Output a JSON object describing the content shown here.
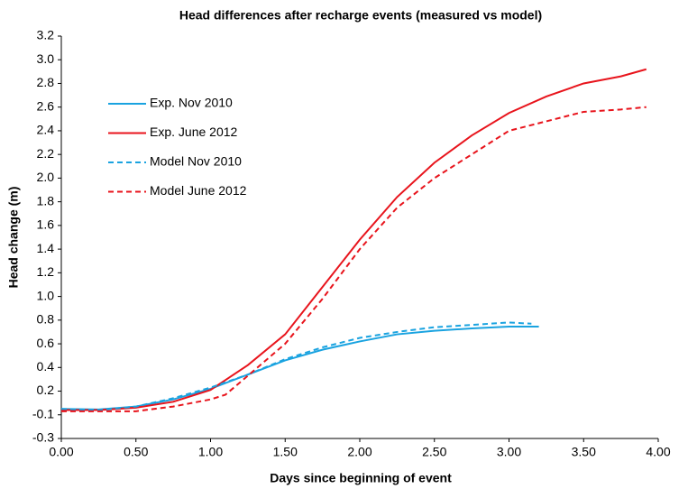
{
  "chart_data": {
    "type": "line",
    "title": "Head differences after recharge events  (measured vs model)",
    "x_label": "Days since beginning of event",
    "y_label": "Head change (m)",
    "xlim": [
      0,
      4
    ],
    "xticks": [
      {
        "value": 0,
        "label": "0.00"
      },
      {
        "value": 0.5,
        "label": "0.50"
      },
      {
        "value": 1,
        "label": "1.00"
      },
      {
        "value": 1.5,
        "label": "1.50"
      },
      {
        "value": 2,
        "label": "2.00"
      },
      {
        "value": 2.5,
        "label": "2.50"
      },
      {
        "value": 3,
        "label": "3.00"
      },
      {
        "value": 3.5,
        "label": "3.50"
      },
      {
        "value": 4,
        "label": "4.00"
      }
    ],
    "ylim": [
      -0.25,
      3.15
    ],
    "yticks": [
      {
        "value": -0.25,
        "label": "-0.3"
      },
      {
        "value": -0.05,
        "label": "-0.1"
      },
      {
        "value": 0.15,
        "label": "0.2"
      },
      {
        "value": 0.35,
        "label": "0.4"
      },
      {
        "value": 0.55,
        "label": "0.6"
      },
      {
        "value": 0.75,
        "label": "0.8"
      },
      {
        "value": 0.95,
        "label": "1.0"
      },
      {
        "value": 1.15,
        "label": "1.2"
      },
      {
        "value": 1.35,
        "label": "1.4"
      },
      {
        "value": 1.55,
        "label": "1.6"
      },
      {
        "value": 1.75,
        "label": "1.8"
      },
      {
        "value": 1.95,
        "label": "2.0"
      },
      {
        "value": 2.15,
        "label": "2.2"
      },
      {
        "value": 2.35,
        "label": "2.4"
      },
      {
        "value": 2.55,
        "label": "2.6"
      },
      {
        "value": 2.75,
        "label": "2.8"
      },
      {
        "value": 2.95,
        "label": "3.0"
      },
      {
        "value": 3.15,
        "label": "3.2"
      }
    ],
    "grid": false,
    "legend": "top-left",
    "series": [
      {
        "name": "Exp. Nov 2010",
        "color": "#1aa3e0",
        "dash": false,
        "x": [
          0,
          0.25,
          0.5,
          0.75,
          1.0,
          1.25,
          1.5,
          1.75,
          2.0,
          2.25,
          2.5,
          2.75,
          3.0,
          3.2
        ],
        "values": [
          0.0,
          -0.005,
          0.02,
          0.08,
          0.17,
          0.29,
          0.41,
          0.5,
          0.57,
          0.63,
          0.66,
          0.68,
          0.695,
          0.695
        ]
      },
      {
        "name": "Exp. June 2012",
        "color": "#e8141c",
        "dash": false,
        "x": [
          0,
          0.25,
          0.5,
          0.75,
          1.0,
          1.25,
          1.5,
          1.75,
          2.0,
          2.25,
          2.5,
          2.75,
          3.0,
          3.25,
          3.5,
          3.75,
          3.92
        ],
        "values": [
          -0.01,
          -0.01,
          0.01,
          0.06,
          0.16,
          0.37,
          0.63,
          1.03,
          1.43,
          1.79,
          2.08,
          2.31,
          2.5,
          2.64,
          2.75,
          2.81,
          2.87
        ]
      },
      {
        "name": "Model Nov 2010",
        "color": "#1aa3e0",
        "dash": true,
        "x": [
          0,
          0.25,
          0.5,
          0.75,
          1.0,
          1.25,
          1.5,
          1.75,
          2.0,
          2.25,
          2.5,
          2.75,
          3.0,
          3.15
        ],
        "values": [
          0.0,
          -0.01,
          0.02,
          0.09,
          0.18,
          0.29,
          0.42,
          0.52,
          0.6,
          0.65,
          0.69,
          0.71,
          0.73,
          0.72
        ]
      },
      {
        "name": "Model June 2012",
        "color": "#e8141c",
        "dash": true,
        "x": [
          0,
          0.25,
          0.5,
          0.75,
          1.0,
          1.1,
          1.25,
          1.5,
          1.75,
          2.0,
          2.25,
          2.5,
          2.75,
          3.0,
          3.25,
          3.5,
          3.75,
          3.92
        ],
        "values": [
          -0.02,
          -0.02,
          -0.02,
          0.02,
          0.08,
          0.12,
          0.28,
          0.55,
          0.93,
          1.35,
          1.7,
          1.95,
          2.15,
          2.35,
          2.43,
          2.51,
          2.53,
          2.55
        ]
      }
    ]
  }
}
